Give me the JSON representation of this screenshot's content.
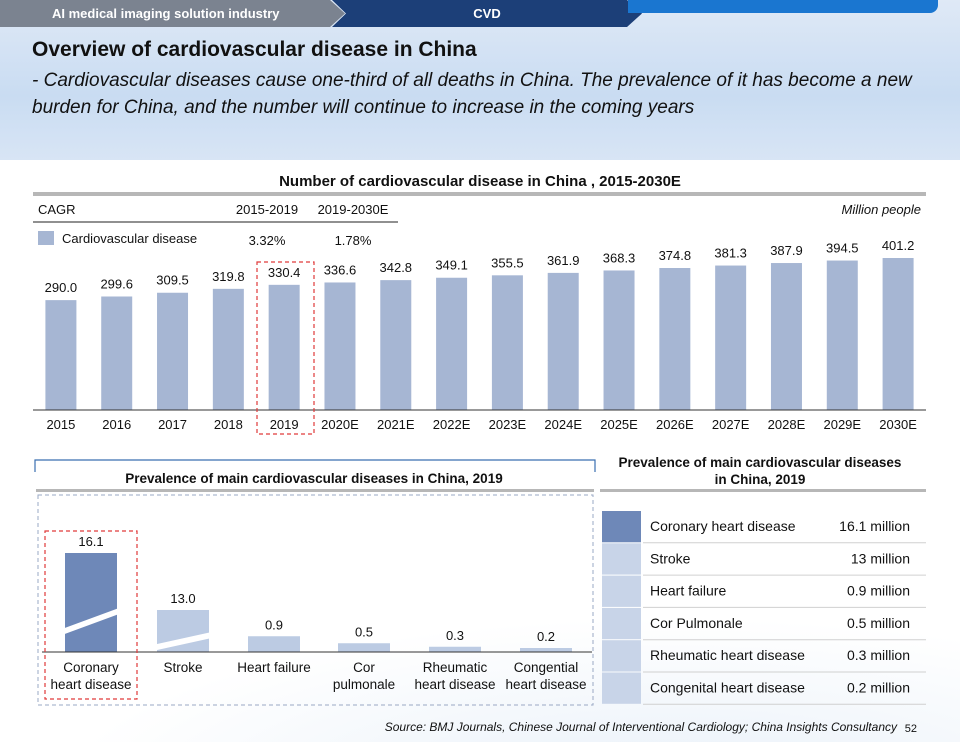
{
  "nav": {
    "section1": "AI medical imaging solution industry",
    "section2": "CVD"
  },
  "title": "Overview of cardiovascular disease in China",
  "subtitle": "- Cardiovascular diseases cause one-third of all deaths in China. The prevalence of it has become a new burden for China, and the number will continue to increase in the coming years",
  "colors": {
    "bar": "#a6b6d3",
    "highlight_bar": "#6e88b8",
    "highlight_border": "#e03a3a",
    "nav_dark": "#1c3f78",
    "nav_gray": "#7b8390",
    "nav_accent": "#1a76d0"
  },
  "chart_data": [
    {
      "type": "bar",
      "title": "Number of cardiovascular disease in China , 2015-2030E",
      "unit_label": "Million people",
      "legend": "Cardiovascular disease",
      "cagr": {
        "label": "CAGR",
        "periods": [
          "2015-2019",
          "2019-2030E"
        ],
        "values": [
          "3.32%",
          "1.78%"
        ]
      },
      "categories": [
        "2015",
        "2016",
        "2017",
        "2018",
        "2019",
        "2020E",
        "2021E",
        "2022E",
        "2023E",
        "2024E",
        "2025E",
        "2026E",
        "2027E",
        "2028E",
        "2029E",
        "2030E"
      ],
      "values": [
        290.0,
        299.6,
        309.5,
        319.8,
        330.4,
        336.6,
        342.8,
        349.1,
        355.5,
        361.9,
        368.3,
        374.8,
        381.3,
        387.9,
        394.5,
        401.2
      ],
      "labels": [
        "290.0",
        "299.6",
        "309.5",
        "319.8",
        "330.4",
        "336.6",
        "342.8",
        "349.1",
        "355.5",
        "361.9",
        "368.3",
        "374.8",
        "381.3",
        "387.9",
        "394.5",
        "401.2"
      ],
      "highlight": "2019",
      "ylim": [
        0,
        401.2
      ]
    },
    {
      "type": "bar",
      "title": "Prevalence of main cardiovascular diseases in China, 2019",
      "categories": [
        [
          "Coronary",
          "heart disease"
        ],
        [
          "Stroke"
        ],
        [
          "Heart failure"
        ],
        [
          "Cor",
          "pulmonale"
        ],
        [
          "Rheumatic",
          "heart disease"
        ],
        [
          "Congential",
          "heart disease"
        ]
      ],
      "values": [
        16.1,
        13.0,
        0.9,
        0.5,
        0.3,
        0.2
      ],
      "labels": [
        "16.1",
        "13.0",
        "0.9",
        "0.5",
        "0.3",
        "0.2"
      ],
      "broken_axis": true,
      "highlight": "Coronary heart disease"
    },
    {
      "type": "table",
      "title": "Prevalence of main cardiovascular diseases in China, 2019",
      "rows": [
        {
          "name": "Coronary heart disease",
          "value": "16.1 million"
        },
        {
          "name": "Stroke",
          "value": "13 million"
        },
        {
          "name": "Heart failure",
          "value": "0.9 million"
        },
        {
          "name": "Cor Pulmonale",
          "value": "0.5 million"
        },
        {
          "name": "Rheumatic heart disease",
          "value": "0.3 million"
        },
        {
          "name": "Congenital heart disease",
          "value": "0.2 million"
        }
      ]
    }
  ],
  "source": "Source: BMJ Journals, Chinese Journal of Interventional Cardiology; China Insights Consultancy",
  "page_number": "52"
}
